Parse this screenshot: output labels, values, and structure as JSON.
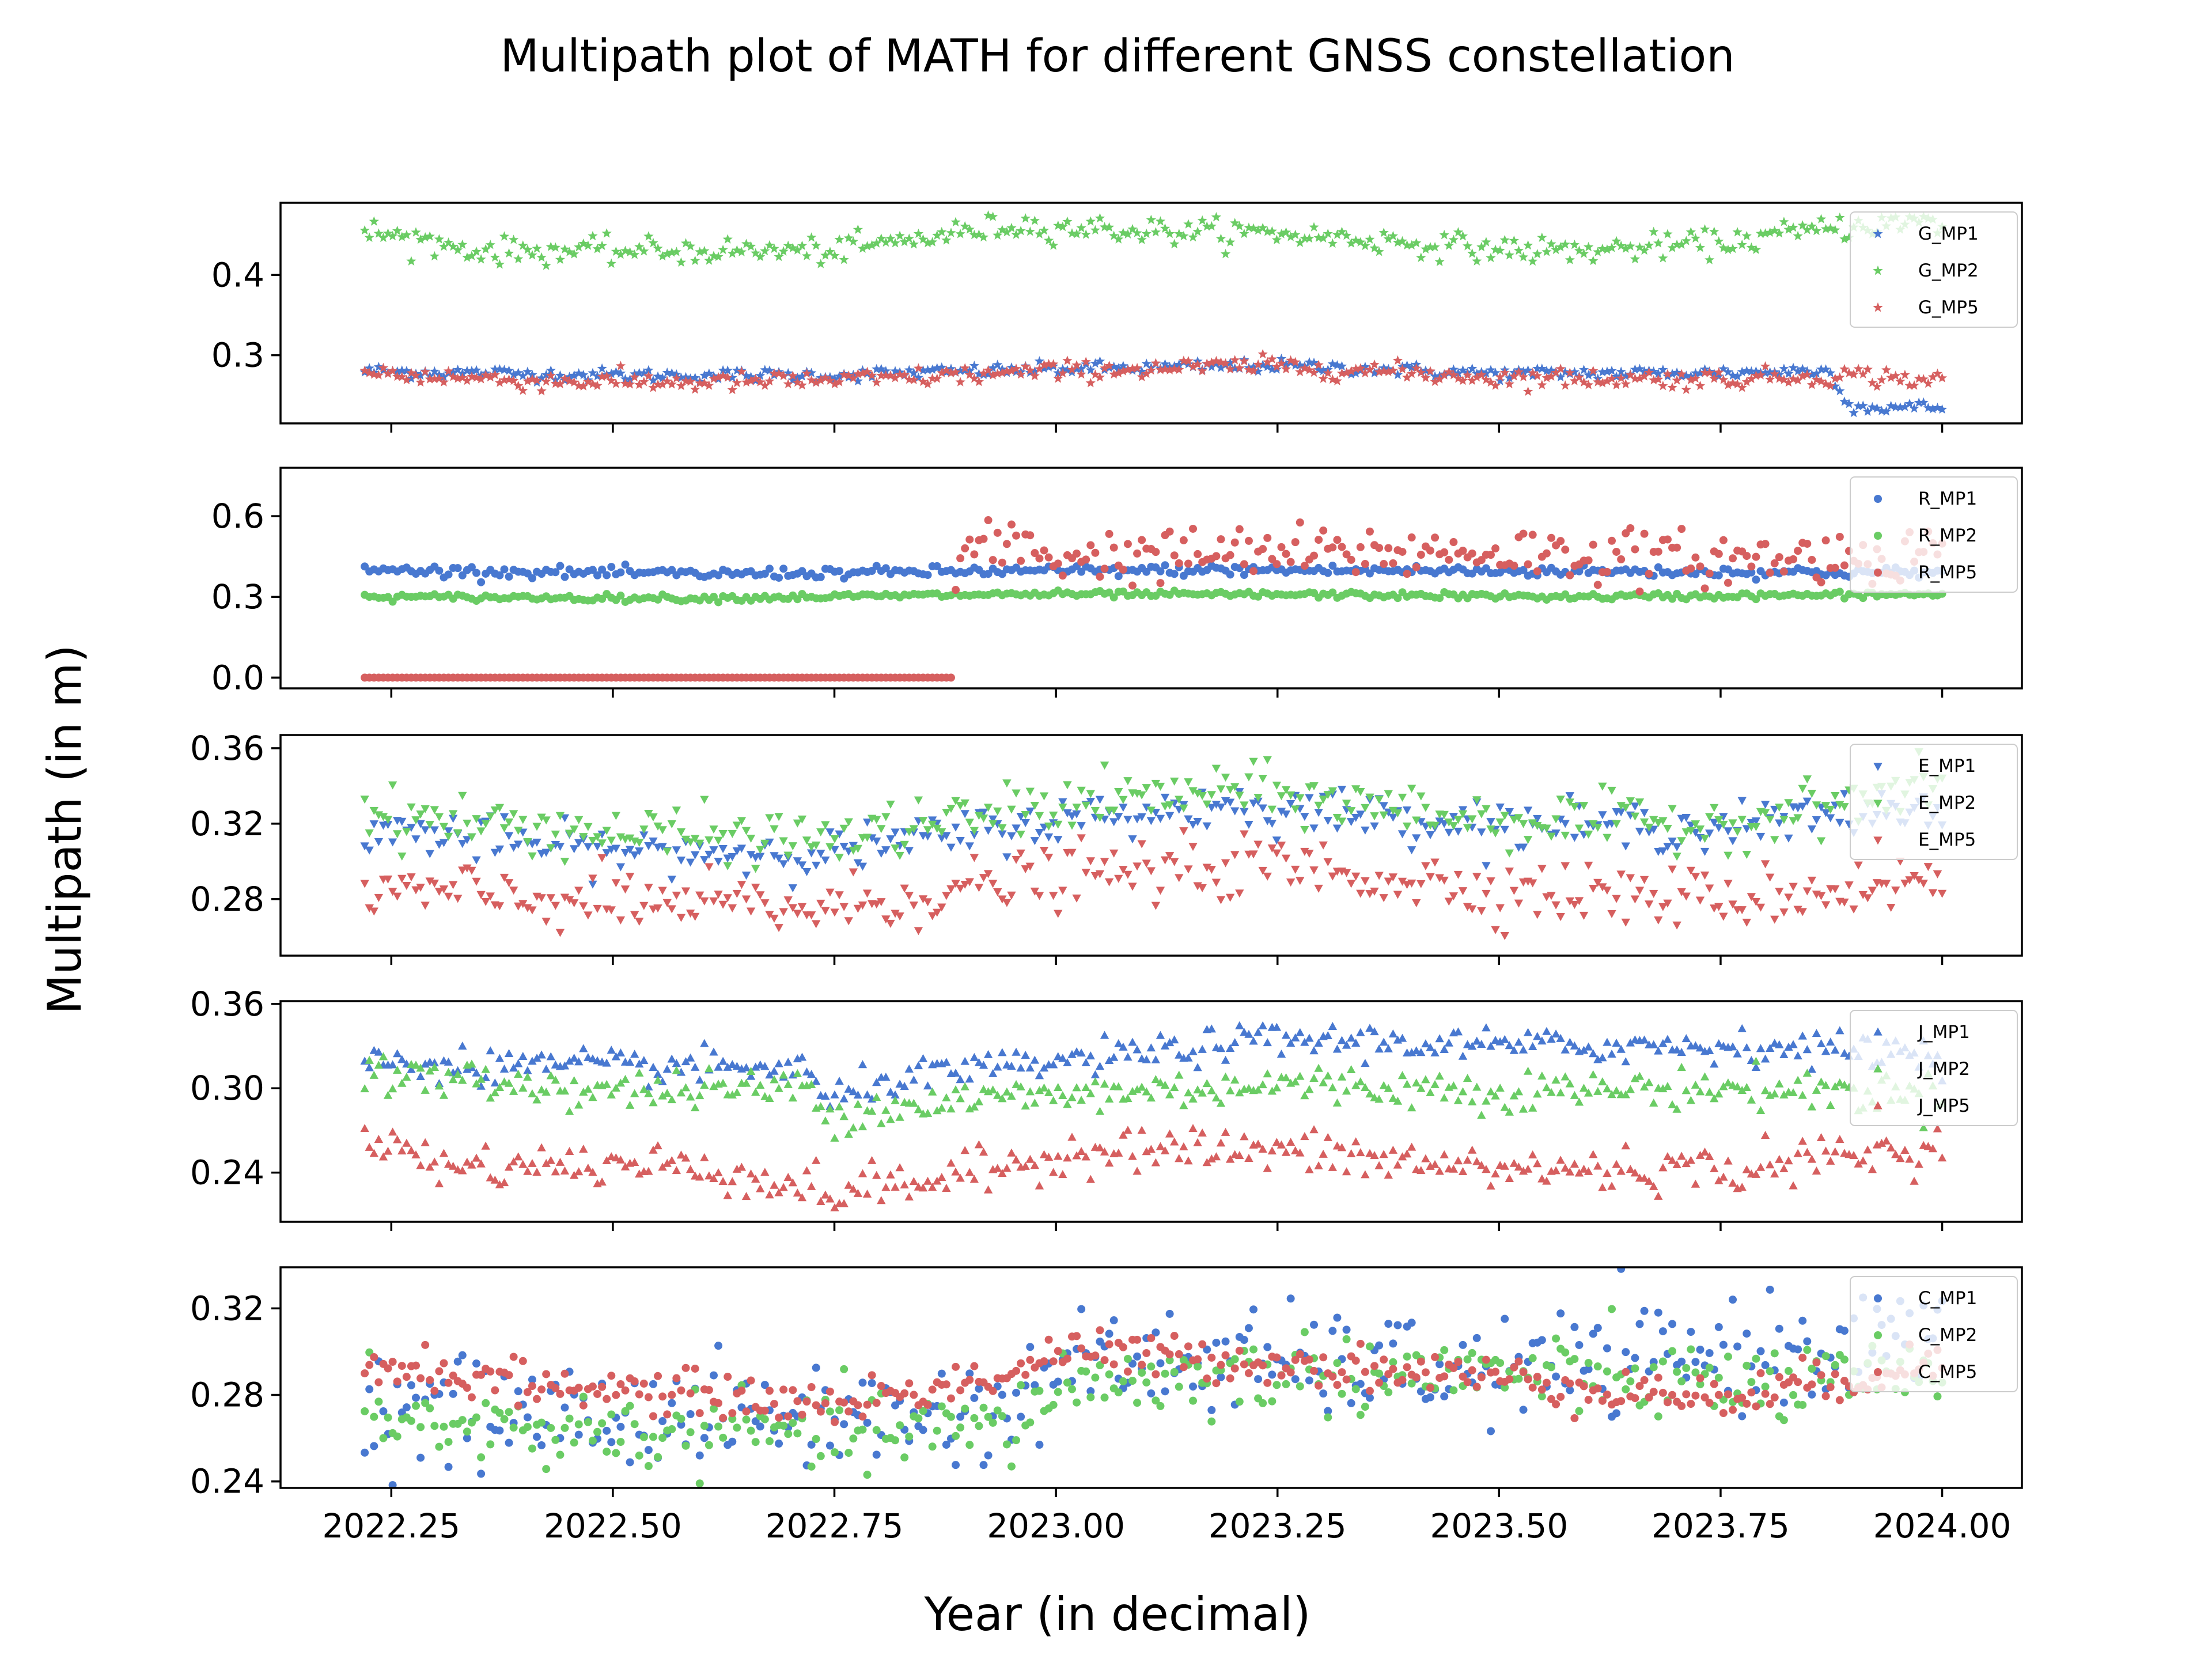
{
  "title": "Multipath plot of MATH for different GNSS constellation",
  "xlabel": "Year (in decimal)",
  "ylabel": "Multipath (in m)",
  "x_ticks": [
    "2022.25",
    "2022.50",
    "2022.75",
    "2023.00",
    "2023.25",
    "2023.50",
    "2023.75",
    "2024.00"
  ],
  "colors": {
    "mp1": "#4878d0",
    "mp2": "#6acc64",
    "mp5": "#d65f5f"
  },
  "chart_data": [
    {
      "type": "scatter",
      "marker": "star",
      "xlim": [
        2022.125,
        2024.09
      ],
      "ylim": [
        0.215,
        0.49
      ],
      "x_start": 2022.22,
      "x_end": 2024.0,
      "yticks": [
        0.3,
        0.4
      ],
      "ytick_labels": [
        "0.3",
        "0.4"
      ],
      "legend_position": "upper right",
      "series": [
        {
          "name": "G_MP1",
          "color": "#4878d0",
          "trend": [
            [
              2022.22,
              0.28
            ],
            [
              2022.5,
              0.275
            ],
            [
              2022.75,
              0.275
            ],
            [
              2023.0,
              0.283
            ],
            [
              2023.25,
              0.287
            ],
            [
              2023.5,
              0.277
            ],
            [
              2023.75,
              0.278
            ],
            [
              2023.87,
              0.281
            ],
            [
              2023.9,
              0.235
            ],
            [
              2024.0,
              0.235
            ]
          ],
          "noise": 0.004
        },
        {
          "name": "G_MP2",
          "color": "#6acc64",
          "trend": [
            [
              2022.22,
              0.455
            ],
            [
              2022.35,
              0.43
            ],
            [
              2022.5,
              0.43
            ],
            [
              2022.75,
              0.43
            ],
            [
              2022.95,
              0.462
            ],
            [
              2023.1,
              0.455
            ],
            [
              2023.25,
              0.452
            ],
            [
              2023.4,
              0.44
            ],
            [
              2023.5,
              0.432
            ],
            [
              2023.6,
              0.43
            ],
            [
              2023.75,
              0.44
            ],
            [
              2023.9,
              0.462
            ],
            [
              2024.0,
              0.465
            ]
          ],
          "noise": 0.008
        },
        {
          "name": "G_MP5",
          "color": "#d65f5f",
          "trend": [
            [
              2022.22,
              0.278
            ],
            [
              2022.4,
              0.268
            ],
            [
              2022.6,
              0.266
            ],
            [
              2022.8,
              0.27
            ],
            [
              2023.0,
              0.28
            ],
            [
              2023.25,
              0.287
            ],
            [
              2023.5,
              0.272
            ],
            [
              2023.75,
              0.27
            ],
            [
              2023.9,
              0.275
            ],
            [
              2024.0,
              0.268
            ]
          ],
          "noise": 0.006
        }
      ]
    },
    {
      "type": "scatter",
      "marker": "circle",
      "xlim": [
        2022.125,
        2024.09
      ],
      "ylim": [
        -0.04,
        0.78
      ],
      "x_start": 2022.22,
      "x_end": 2024.0,
      "yticks": [
        0.0,
        0.3,
        0.6
      ],
      "ytick_labels": [
        "0.0",
        "0.3",
        "0.6"
      ],
      "legend_position": "upper right",
      "series": [
        {
          "name": "R_MP1",
          "color": "#4878d0",
          "trend": [
            [
              2022.22,
              0.4
            ],
            [
              2022.6,
              0.385
            ],
            [
              2022.9,
              0.395
            ],
            [
              2023.2,
              0.4
            ],
            [
              2023.6,
              0.395
            ],
            [
              2024.0,
              0.39
            ]
          ],
          "noise": 0.01
        },
        {
          "name": "R_MP2",
          "color": "#6acc64",
          "trend": [
            [
              2022.22,
              0.3
            ],
            [
              2022.6,
              0.295
            ],
            [
              2022.95,
              0.31
            ],
            [
              2023.3,
              0.308
            ],
            [
              2023.6,
              0.3
            ],
            [
              2024.0,
              0.31
            ]
          ],
          "noise": 0.006
        },
        {
          "name": "R_MP5",
          "color": "#d65f5f",
          "trend": [
            [
              2022.22,
              0.0
            ],
            [
              2022.88,
              0.0
            ],
            [
              2022.89,
              0.45
            ],
            [
              2022.95,
              0.5
            ],
            [
              2023.0,
              0.45
            ],
            [
              2023.2,
              0.46
            ],
            [
              2023.5,
              0.47
            ],
            [
              2023.75,
              0.44
            ],
            [
              2024.0,
              0.46
            ]
          ],
          "noise": 0.05,
          "flat_until": 2022.885
        }
      ]
    },
    {
      "type": "scatter",
      "marker": "triangle-down",
      "xlim": [
        2022.125,
        2024.09
      ],
      "ylim": [
        0.25,
        0.367
      ],
      "x_start": 2022.22,
      "x_end": 2024.0,
      "yticks": [
        0.28,
        0.32,
        0.36
      ],
      "ytick_labels": [
        "0.28",
        "0.32",
        "0.36"
      ],
      "legend_position": "upper right",
      "series": [
        {
          "name": "E_MP1",
          "color": "#4878d0",
          "trend": [
            [
              2022.22,
              0.318
            ],
            [
              2022.5,
              0.305
            ],
            [
              2022.75,
              0.305
            ],
            [
              2023.0,
              0.322
            ],
            [
              2023.2,
              0.33
            ],
            [
              2023.5,
              0.32
            ],
            [
              2023.75,
              0.318
            ],
            [
              2024.0,
              0.33
            ]
          ],
          "noise": 0.006
        },
        {
          "name": "E_MP2",
          "color": "#6acc64",
          "trend": [
            [
              2022.22,
              0.325
            ],
            [
              2022.5,
              0.315
            ],
            [
              2022.75,
              0.312
            ],
            [
              2023.0,
              0.33
            ],
            [
              2023.2,
              0.338
            ],
            [
              2023.5,
              0.322
            ],
            [
              2023.75,
              0.32
            ],
            [
              2024.0,
              0.34
            ]
          ],
          "noise": 0.007
        },
        {
          "name": "E_MP5",
          "color": "#d65f5f",
          "trend": [
            [
              2022.22,
              0.285
            ],
            [
              2022.5,
              0.278
            ],
            [
              2022.75,
              0.275
            ],
            [
              2023.0,
              0.292
            ],
            [
              2023.25,
              0.298
            ],
            [
              2023.5,
              0.285
            ],
            [
              2023.75,
              0.28
            ],
            [
              2024.0,
              0.29
            ]
          ],
          "noise": 0.008
        }
      ]
    },
    {
      "type": "scatter",
      "marker": "triangle-up",
      "xlim": [
        2022.125,
        2024.09
      ],
      "ylim": [
        0.205,
        0.362
      ],
      "x_start": 2022.22,
      "x_end": 2024.0,
      "yticks": [
        0.24,
        0.3,
        0.36
      ],
      "ytick_labels": [
        "0.24",
        "0.30",
        "0.36"
      ],
      "legend_position": "upper right",
      "series": [
        {
          "name": "J_MP1",
          "color": "#4878d0",
          "trend": [
            [
              2022.22,
              0.318
            ],
            [
              2022.5,
              0.315
            ],
            [
              2022.72,
              0.314
            ],
            [
              2022.74,
              0.288
            ],
            [
              2022.8,
              0.305
            ],
            [
              2023.0,
              0.318
            ],
            [
              2023.25,
              0.335
            ],
            [
              2023.5,
              0.33
            ],
            [
              2023.75,
              0.33
            ],
            [
              2024.0,
              0.325
            ]
          ],
          "noise": 0.006
        },
        {
          "name": "J_MP2",
          "color": "#6acc64",
          "trend": [
            [
              2022.22,
              0.31
            ],
            [
              2022.5,
              0.298
            ],
            [
              2022.72,
              0.3
            ],
            [
              2022.74,
              0.282
            ],
            [
              2022.9,
              0.292
            ],
            [
              2023.0,
              0.295
            ],
            [
              2023.25,
              0.303
            ],
            [
              2023.5,
              0.298
            ],
            [
              2023.75,
              0.3
            ],
            [
              2024.0,
              0.295
            ]
          ],
          "noise": 0.007
        },
        {
          "name": "J_MP5",
          "color": "#d65f5f",
          "trend": [
            [
              2022.22,
              0.27
            ],
            [
              2022.3,
              0.245
            ],
            [
              2022.6,
              0.245
            ],
            [
              2022.74,
              0.225
            ],
            [
              2022.9,
              0.238
            ],
            [
              2023.05,
              0.258
            ],
            [
              2023.25,
              0.255
            ],
            [
              2023.5,
              0.242
            ],
            [
              2023.75,
              0.242
            ],
            [
              2024.0,
              0.258
            ]
          ],
          "noise": 0.008
        }
      ]
    },
    {
      "type": "scatter",
      "marker": "circle",
      "xlim": [
        2022.125,
        2024.09
      ],
      "ylim": [
        0.237,
        0.339
      ],
      "x_start": 2022.22,
      "x_end": 2024.0,
      "yticks": [
        0.24,
        0.28,
        0.32
      ],
      "ytick_labels": [
        "0.24",
        "0.28",
        "0.32"
      ],
      "legend_position": "upper right",
      "series": [
        {
          "name": "C_MP1",
          "color": "#4878d0",
          "trend": [
            [
              2022.22,
              0.275
            ],
            [
              2022.5,
              0.27
            ],
            [
              2022.75,
              0.27
            ],
            [
              2022.95,
              0.272
            ],
            [
              2023.0,
              0.295
            ],
            [
              2023.25,
              0.295
            ],
            [
              2023.5,
              0.29
            ],
            [
              2023.75,
              0.3
            ],
            [
              2024.0,
              0.305
            ]
          ],
          "noise": 0.012
        },
        {
          "name": "C_MP2",
          "color": "#6acc64",
          "trend": [
            [
              2022.22,
              0.275
            ],
            [
              2022.3,
              0.265
            ],
            [
              2022.6,
              0.262
            ],
            [
              2022.75,
              0.262
            ],
            [
              2022.95,
              0.265
            ],
            [
              2023.0,
              0.285
            ],
            [
              2023.25,
              0.29
            ],
            [
              2023.5,
              0.29
            ],
            [
              2023.75,
              0.285
            ],
            [
              2024.0,
              0.285
            ]
          ],
          "noise": 0.009
        },
        {
          "name": "C_MP5",
          "color": "#d65f5f",
          "trend": [
            [
              2022.22,
              0.295
            ],
            [
              2022.4,
              0.285
            ],
            [
              2022.6,
              0.28
            ],
            [
              2022.75,
              0.275
            ],
            [
              2022.95,
              0.29
            ],
            [
              2023.0,
              0.3
            ],
            [
              2023.25,
              0.295
            ],
            [
              2023.5,
              0.288
            ],
            [
              2023.75,
              0.278
            ],
            [
              2024.0,
              0.295
            ]
          ],
          "noise": 0.005
        }
      ]
    }
  ]
}
